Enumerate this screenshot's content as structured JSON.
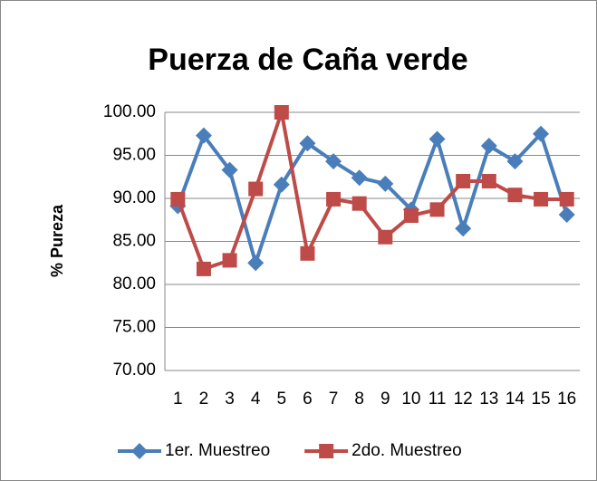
{
  "chart_data": {
    "type": "line",
    "title": "Puerza de Caña verde",
    "y_label": "% Pureza",
    "categories": [
      "1",
      "2",
      "3",
      "4",
      "5",
      "6",
      "7",
      "8",
      "9",
      "10",
      "11",
      "12",
      "13",
      "14",
      "15",
      "16"
    ],
    "series": [
      {
        "name": "1er. Muestreo",
        "color": "#4a7ebb",
        "marker": "diamond",
        "values": [
          89.1,
          97.3,
          93.3,
          82.5,
          91.6,
          96.4,
          94.3,
          92.4,
          91.7,
          88.7,
          96.9,
          86.5,
          96.1,
          94.3,
          97.5,
          88.1
        ]
      },
      {
        "name": "2do. Muestreo",
        "color": "#be4b48",
        "marker": "square",
        "values": [
          89.9,
          81.8,
          82.8,
          91.1,
          100.0,
          83.6,
          89.9,
          89.4,
          85.5,
          88.0,
          88.7,
          92.0,
          92.0,
          90.4,
          89.9,
          89.9
        ]
      }
    ],
    "ylim": [
      70,
      100
    ],
    "yticks": [
      {
        "value": 70,
        "label": "70.00"
      },
      {
        "value": 75,
        "label": "75.00"
      },
      {
        "value": 80,
        "label": "80.00"
      },
      {
        "value": 85,
        "label": "85.00"
      },
      {
        "value": 90,
        "label": "90.00"
      },
      {
        "value": 95,
        "label": "95.00"
      },
      {
        "value": 100,
        "label": "100.00"
      }
    ],
    "grid": true,
    "legend": "bottom"
  }
}
